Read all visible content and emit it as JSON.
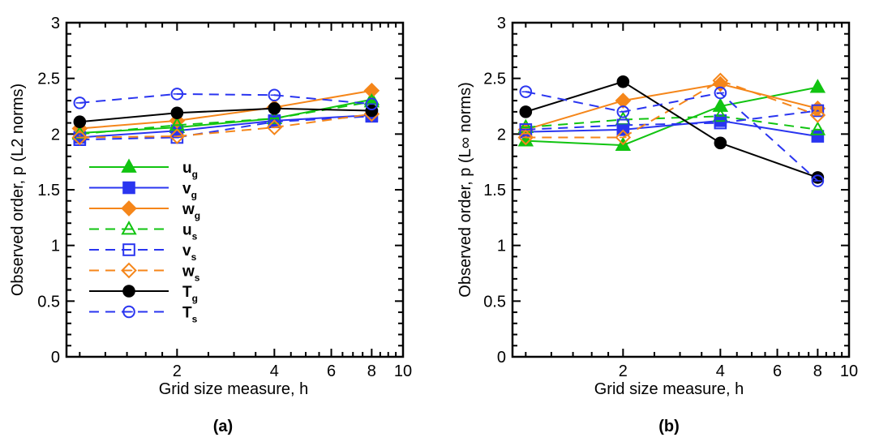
{
  "chart_data": [
    {
      "type": "line",
      "panel_label": "(a)",
      "xlabel": "Grid size measure, h",
      "ylabel": "Observed order, p (L2 norms)",
      "xscale": "log",
      "xlim": [
        0.91,
        10
      ],
      "ylim": [
        0,
        3
      ],
      "xticks": [
        2,
        4,
        6,
        8,
        10
      ],
      "xtick_labels": [
        "2",
        "4",
        "6",
        "8",
        "10"
      ],
      "yticks": [
        0,
        0.5,
        1,
        1.5,
        2,
        2.5,
        3
      ],
      "ytick_labels": [
        "0",
        "0.5",
        "1",
        "1.5",
        "2",
        "2.5",
        "3"
      ],
      "grid": false,
      "legend": "left-middle",
      "x": [
        1,
        2,
        4,
        8
      ],
      "series": [
        {
          "name": "u_g",
          "label": "u",
          "sub": "g",
          "color": "#11c411",
          "dash": "solid",
          "marker": "triangle",
          "filled": true,
          "values": [
            2.01,
            2.06,
            2.14,
            2.31
          ]
        },
        {
          "name": "v_g",
          "label": "v",
          "sub": "g",
          "color": "#2a35f0",
          "dash": "solid",
          "marker": "square",
          "filled": true,
          "values": [
            1.97,
            2.03,
            2.12,
            2.17
          ]
        },
        {
          "name": "w_g",
          "label": "w",
          "sub": "g",
          "color": "#f5861a",
          "dash": "solid",
          "marker": "diamond",
          "filled": true,
          "values": [
            2.05,
            2.12,
            2.24,
            2.39
          ]
        },
        {
          "name": "u_s",
          "label": "u",
          "sub": "s",
          "color": "#11c411",
          "dash": "dashed",
          "marker": "triangle",
          "filled": false,
          "values": [
            2.0,
            2.08,
            2.14,
            2.29
          ]
        },
        {
          "name": "v_s",
          "label": "v",
          "sub": "s",
          "color": "#2a35f0",
          "dash": "dashed",
          "marker": "square",
          "filled": false,
          "values": [
            1.95,
            1.97,
            2.11,
            2.16
          ]
        },
        {
          "name": "w_s",
          "label": "w",
          "sub": "s",
          "color": "#f5861a",
          "dash": "dashed",
          "marker": "diamond",
          "filled": false,
          "values": [
            1.97,
            1.98,
            2.06,
            2.18
          ]
        },
        {
          "name": "T_g",
          "label": "T",
          "sub": "g",
          "color": "#000000",
          "dash": "solid",
          "marker": "circle",
          "filled": true,
          "values": [
            2.11,
            2.19,
            2.23,
            2.21
          ]
        },
        {
          "name": "T_s",
          "label": "T",
          "sub": "s",
          "color": "#2a35f0",
          "dash": "dashed",
          "marker": "circle",
          "filled": false,
          "values": [
            2.28,
            2.36,
            2.35,
            2.27
          ]
        }
      ]
    },
    {
      "type": "line",
      "panel_label": "(b)",
      "xlabel": "Grid size measure, h",
      "ylabel": "Observed order, p (L∞ norms)",
      "xscale": "log",
      "xlim": [
        0.91,
        10
      ],
      "ylim": [
        0,
        3
      ],
      "xticks": [
        2,
        4,
        6,
        8,
        10
      ],
      "xtick_labels": [
        "2",
        "4",
        "6",
        "8",
        "10"
      ],
      "yticks": [
        0,
        0.5,
        1,
        1.5,
        2,
        2.5,
        3
      ],
      "ytick_labels": [
        "0",
        "0.5",
        "1",
        "1.5",
        "2",
        "2.5",
        "3"
      ],
      "grid": false,
      "legend": "none",
      "x": [
        1,
        2,
        4,
        8
      ],
      "series": [
        {
          "name": "u_g",
          "label": "u",
          "sub": "g",
          "color": "#11c411",
          "dash": "solid",
          "marker": "triangle",
          "filled": true,
          "values": [
            1.94,
            1.9,
            2.25,
            2.42
          ]
        },
        {
          "name": "v_g",
          "label": "v",
          "sub": "g",
          "color": "#2a35f0",
          "dash": "solid",
          "marker": "square",
          "filled": true,
          "values": [
            2.02,
            2.04,
            2.12,
            1.98
          ]
        },
        {
          "name": "w_g",
          "label": "w",
          "sub": "g",
          "color": "#f5861a",
          "dash": "solid",
          "marker": "diamond",
          "filled": true,
          "values": [
            2.04,
            2.3,
            2.45,
            2.23
          ]
        },
        {
          "name": "u_s",
          "label": "u",
          "sub": "s",
          "color": "#11c411",
          "dash": "dashed",
          "marker": "triangle",
          "filled": false,
          "values": [
            2.06,
            2.13,
            2.16,
            2.04
          ]
        },
        {
          "name": "v_s",
          "label": "v",
          "sub": "s",
          "color": "#2a35f0",
          "dash": "dashed",
          "marker": "square",
          "filled": false,
          "values": [
            2.04,
            2.08,
            2.1,
            2.21
          ]
        },
        {
          "name": "w_s",
          "label": "w",
          "sub": "s",
          "color": "#f5861a",
          "dash": "dashed",
          "marker": "diamond",
          "filled": false,
          "values": [
            1.97,
            1.97,
            2.48,
            2.17
          ]
        },
        {
          "name": "T_g",
          "label": "T",
          "sub": "g",
          "color": "#000000",
          "dash": "solid",
          "marker": "circle",
          "filled": true,
          "values": [
            2.2,
            2.47,
            1.92,
            1.61
          ]
        },
        {
          "name": "T_s",
          "label": "T",
          "sub": "s",
          "color": "#2a35f0",
          "dash": "dashed",
          "marker": "circle",
          "filled": false,
          "values": [
            2.38,
            2.2,
            2.37,
            1.58
          ]
        }
      ]
    }
  ]
}
